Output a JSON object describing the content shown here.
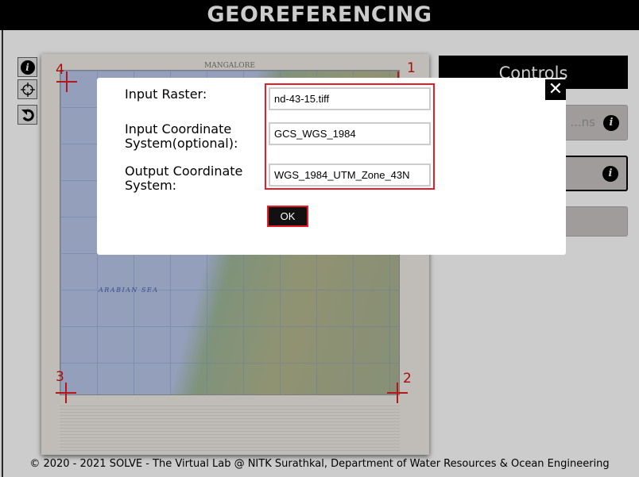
{
  "header": {
    "title": "GEOREFERENCING"
  },
  "toolbar": {
    "icons": [
      "info-icon",
      "crosshair-icon",
      "reset-icon"
    ]
  },
  "map": {
    "title": "MANGALORE",
    "sea_label": "ARABIAN SEA",
    "gcp_labels": [
      "1",
      "2",
      "3",
      "4"
    ],
    "gcp_color": "#e02020"
  },
  "controls": {
    "title": "Controls",
    "buttons": [
      {
        "label": "...ns",
        "info": "i"
      },
      {
        "label": "",
        "info": "i"
      },
      {
        "label": ""
      }
    ]
  },
  "modal": {
    "input_raster_label": "Input Raster:",
    "input_cs_label": "Input Coordinate System(optional):",
    "output_cs_label": "Output Coordinate System:",
    "input_raster_value": "nd-43-15.tiff",
    "input_cs_value": "GCS_WGS_1984",
    "output_cs_value": "WGS_1984_UTM_Zone_43N",
    "ok_label": "OK",
    "close_label": "✕",
    "highlight_color": "#e81c24"
  },
  "footer": {
    "text": "© 2020 - 2021 SOLVE - The Virtual Lab @ NITK Surathkal, Department of Water Resources & Ocean Engineering"
  }
}
